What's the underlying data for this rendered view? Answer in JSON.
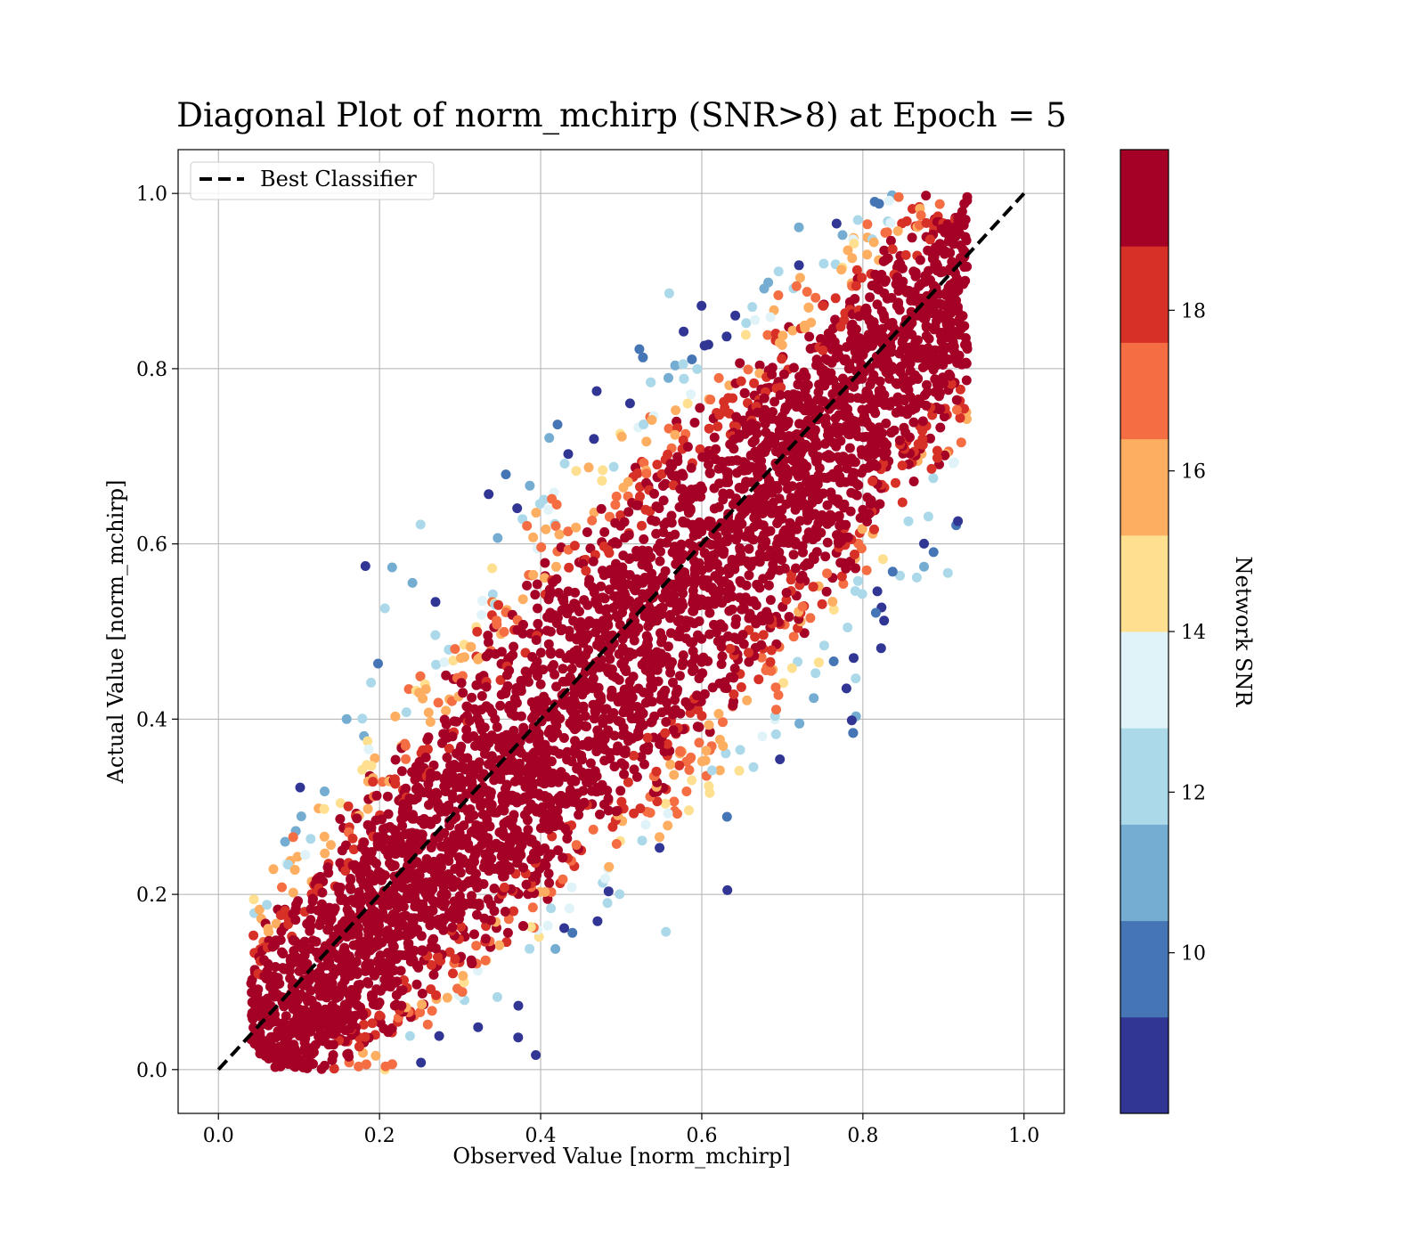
{
  "chart_data": {
    "type": "scatter",
    "title": "Diagonal Plot of norm_mchirp (SNR>8) at Epoch = 5",
    "xlabel": "Observed Value [norm_mchirp]",
    "ylabel": "Actual Value [norm_mchirp]",
    "xlim": [
      -0.05,
      1.05
    ],
    "ylim": [
      -0.05,
      1.05
    ],
    "xticks": [
      "0.0",
      "0.2",
      "0.4",
      "0.6",
      "0.8",
      "1.0"
    ],
    "yticks": [
      "0.0",
      "0.2",
      "0.4",
      "0.6",
      "0.8",
      "1.0"
    ],
    "grid": true,
    "legend": {
      "position": "top-left",
      "entries": [
        "Best Classifier"
      ]
    },
    "reference_line": {
      "name": "Best Classifier",
      "style": "dashed",
      "color": "#000000",
      "from": [
        0,
        0
      ],
      "to": [
        1,
        1
      ]
    },
    "colorbar": {
      "label": "Network SNR",
      "range": [
        8,
        20
      ],
      "ticks": [
        "10",
        "12",
        "14",
        "16",
        "18"
      ],
      "bands": [
        "#313695",
        "#4575b4",
        "#74add1",
        "#abd9e9",
        "#e0f3f8",
        "#fee090",
        "#fdae61",
        "#f46d43",
        "#d73027",
        "#a50026"
      ]
    },
    "points_description_values": {
      "core_color": "#a50026",
      "spread_along_diagonal": "dense band from ~0.05 to ~0.9 on x"
    }
  }
}
